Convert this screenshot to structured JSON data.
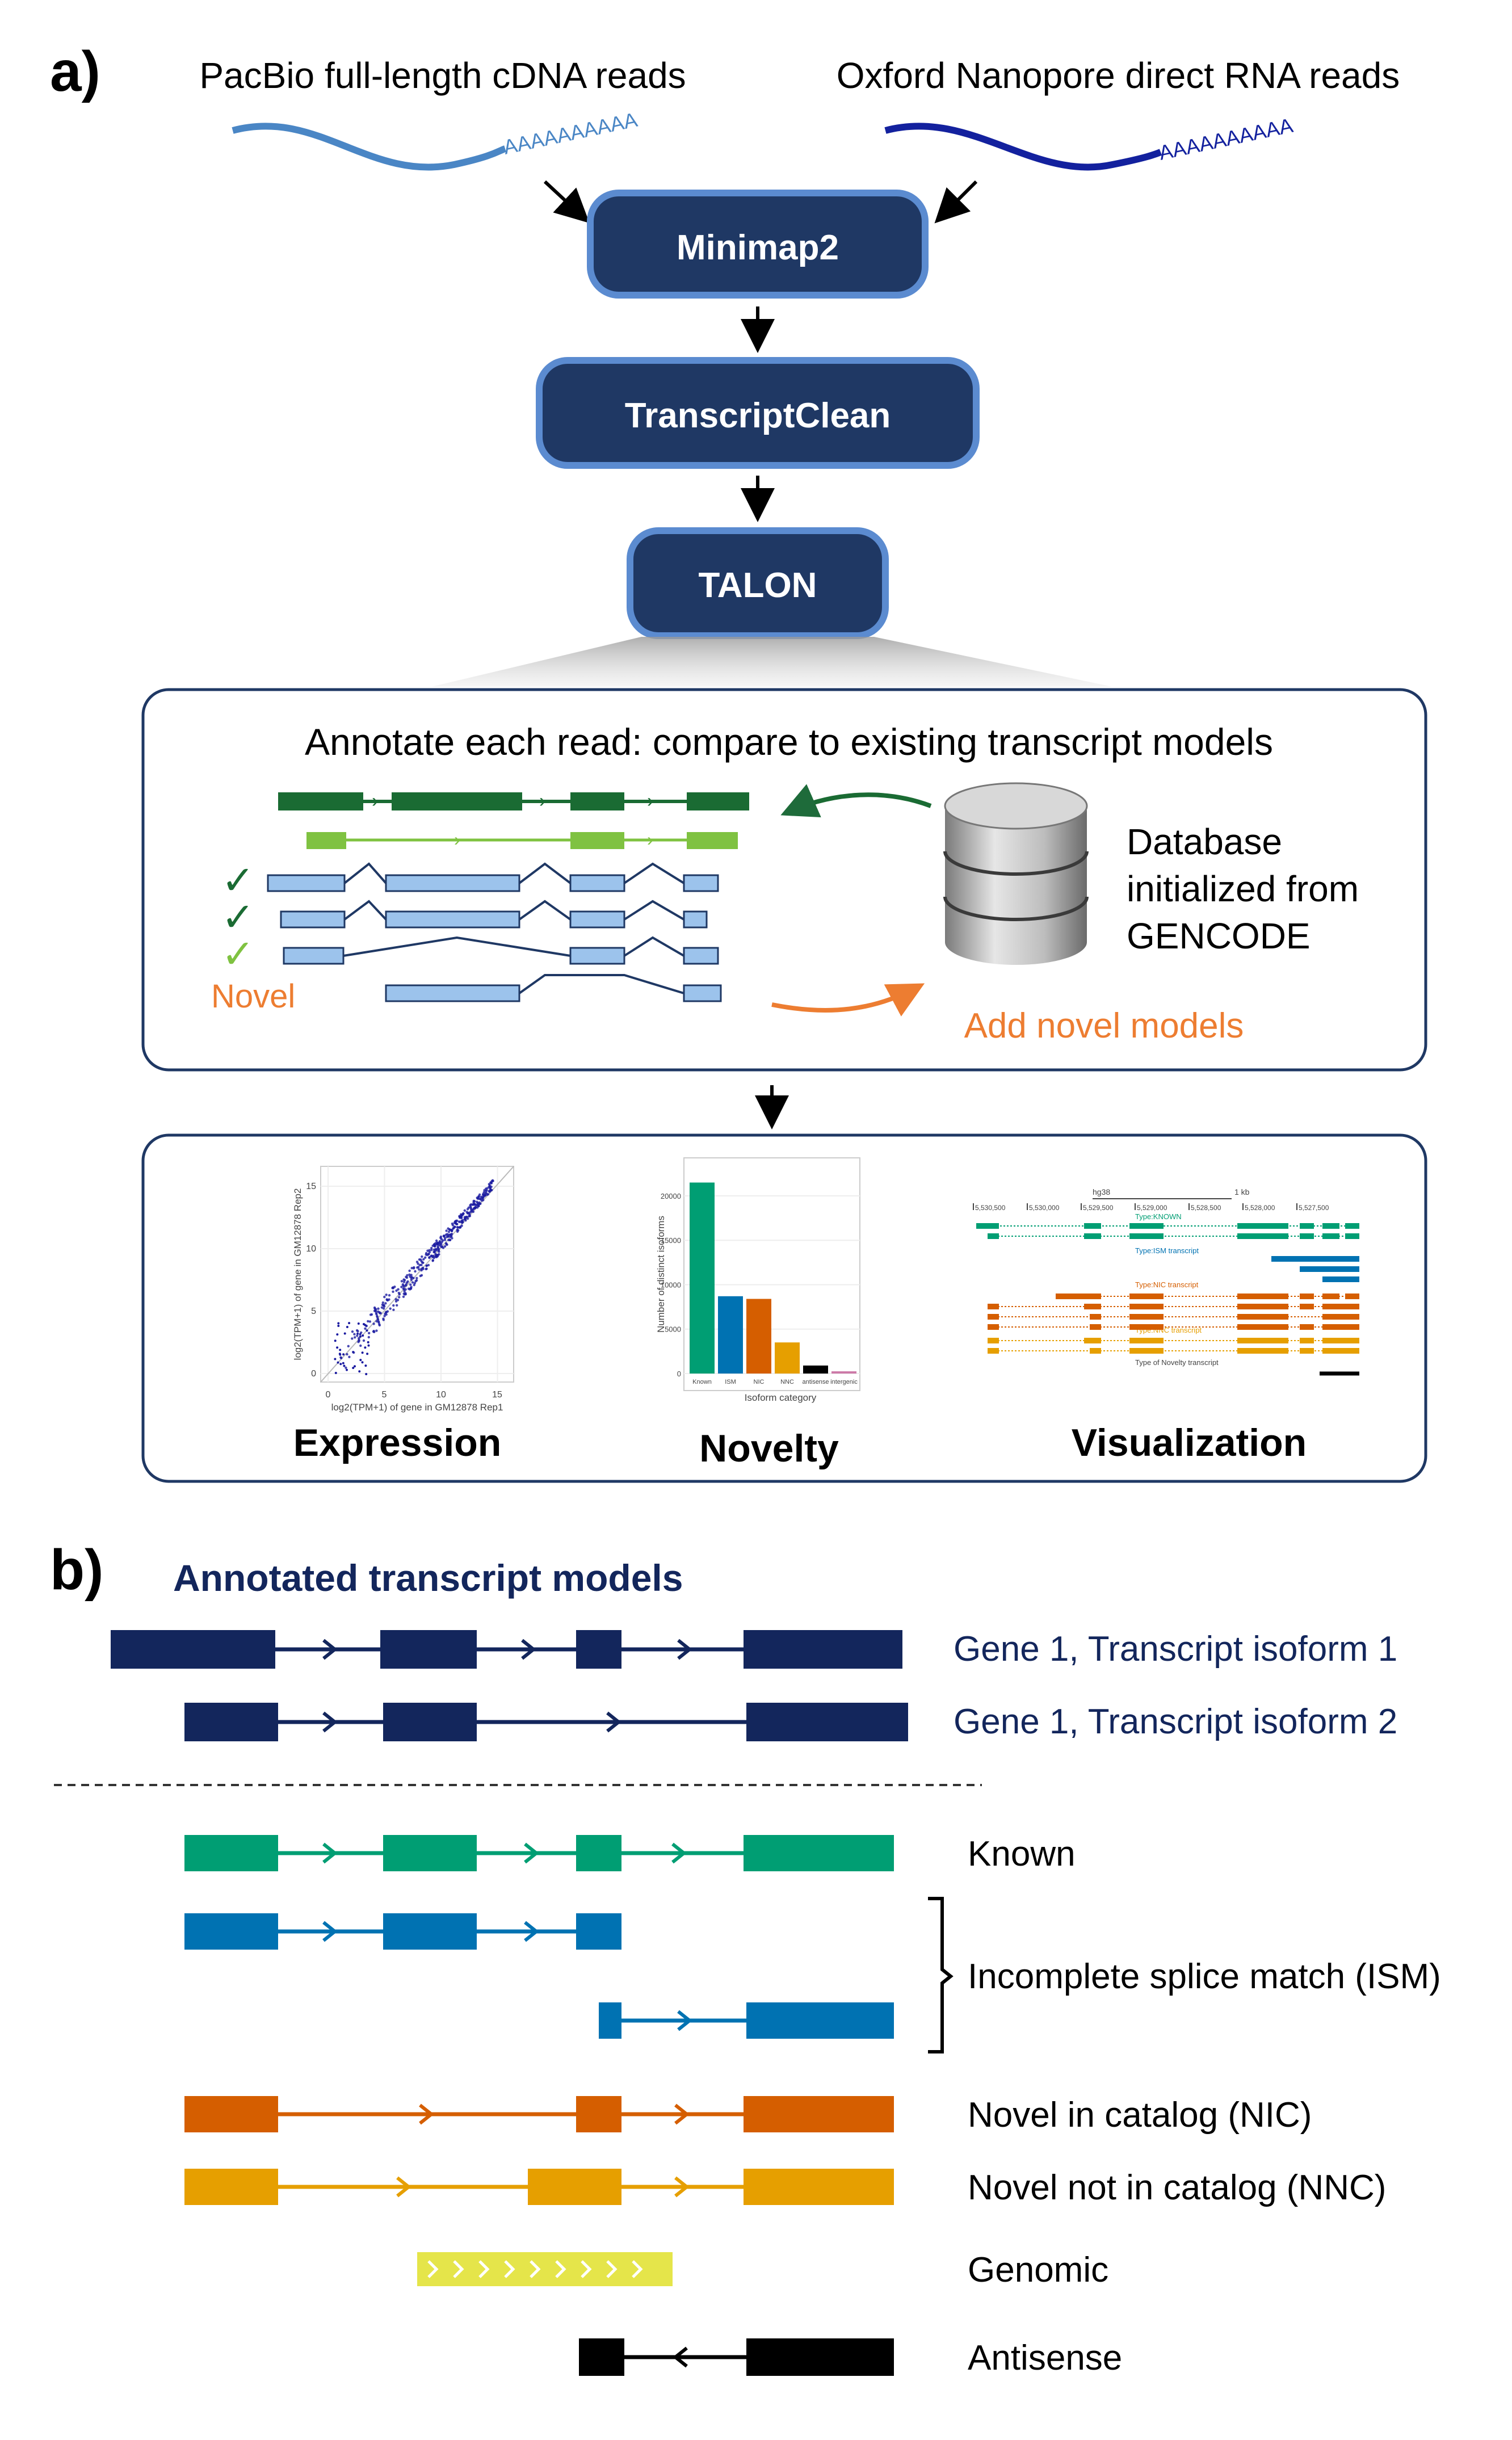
{
  "panel_a": {
    "label": "a)",
    "inputs": {
      "pacbio": "PacBio full-length cDNA reads",
      "nanopore": "Oxford Nanopore direct RNA reads",
      "polya": "AAAAAAAAAA"
    },
    "pipeline": {
      "step1": "Minimap2",
      "step2": "TranscriptClean",
      "step3": "TALON"
    },
    "annotate": {
      "title": "Annotate each read: compare to existing transcript models",
      "database_line1": "Database",
      "database_line2": "initialized from",
      "database_line3": "GENCODE",
      "novel_label": "Novel",
      "add_novel": "Add novel models"
    },
    "outputs": {
      "expression": "Expression",
      "novelty": "Novelty",
      "visualization": "Visualization",
      "expression_xlabel": "log2(TPM+1) of gene in GM12878 Rep1",
      "expression_ylabel": "log2(TPM+1) of gene in GM12878 Rep2",
      "expression_xticks": [
        "0",
        "5",
        "10",
        "15"
      ],
      "expression_yticks": [
        "0",
        "5",
        "10",
        "15"
      ],
      "novelty_xlabel": "Isoform category",
      "novelty_ylabel": "Number of distinct isoforms",
      "novelty_categories": [
        "Known",
        "ISM",
        "NIC",
        "NNC",
        "antisense",
        "intergenic"
      ],
      "novelty_values": [
        21500,
        8700,
        8400,
        3500,
        900,
        250
      ],
      "novelty_colors": [
        "#009e73",
        "#0072b2",
        "#d55e00",
        "#e69f00",
        "#000000",
        "#cc79a7"
      ],
      "novelty_yticks": [
        "0",
        "5000",
        "10000",
        "15000",
        "20000"
      ],
      "vis_positions": [
        "5,530,500",
        "5,530,000",
        "5,529,500",
        "5,529,000",
        "5,528,500",
        "5,528,000",
        "5,527,500"
      ],
      "vis_scale": "1 kb",
      "vis_genome": "hg38",
      "vis_track1": "Type:KNOWN",
      "vis_track2": "Type:ISM transcript",
      "vis_track3": "Type:NIC transcript",
      "vis_track4": "Type:NNC transcript",
      "vis_track5": "Type of Novelty transcript"
    }
  },
  "panel_b": {
    "label": "b)",
    "title": "Annotated transcript models",
    "isoform1": "Gene 1, Transcript isoform 1",
    "isoform2": "Gene 1, Transcript isoform 2",
    "known": "Known",
    "ism": "Incomplete splice match (ISM)",
    "nic": "Novel in catalog (NIC)",
    "nnc": "Novel not in catalog (NNC)",
    "genomic": "Genomic",
    "antisense": "Antisense"
  },
  "colors": {
    "navy": "#13265c",
    "known": "#009e73",
    "ism": "#0072b2",
    "nic": "#d55e00",
    "nnc": "#e69f00",
    "genomic": "#e5e54a",
    "antisense": "#000000",
    "novel_orange": "#ed7d31",
    "pipeline_fill": "#1f3864",
    "pipeline_border": "#5b8bd0"
  }
}
